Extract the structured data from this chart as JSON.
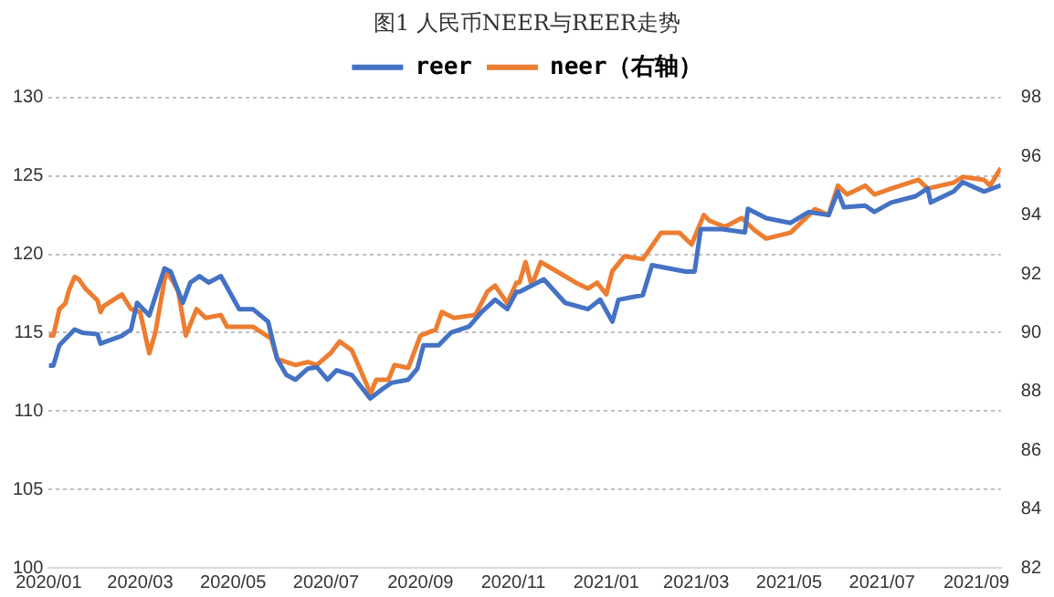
{
  "chart_data": {
    "type": "line",
    "title": "图1 人民币NEER与REER走势",
    "legend": "top",
    "grid": "y",
    "marker": "none",
    "line_style": "solid",
    "xlim": [
      "2020-01-01",
      "2021-09-17"
    ],
    "xticks": [
      {
        "value": "2020-01-01",
        "label": "2020/01"
      },
      {
        "value": "2020-03-01",
        "label": "2020/03"
      },
      {
        "value": "2020-05-01",
        "label": "2020/05"
      },
      {
        "value": "2020-07-01",
        "label": "2020/07"
      },
      {
        "value": "2020-09-01",
        "label": "2020/09"
      },
      {
        "value": "2020-11-01",
        "label": "2020/11"
      },
      {
        "value": "2021-01-01",
        "label": "2021/01"
      },
      {
        "value": "2021-03-01",
        "label": "2021/03"
      },
      {
        "value": "2021-05-01",
        "label": "2021/05"
      },
      {
        "value": "2021-07-01",
        "label": "2021/07"
      },
      {
        "value": "2021-09-01",
        "label": "2021/09"
      }
    ],
    "ylim": [
      100,
      130
    ],
    "yticks": [
      100,
      105,
      110,
      115,
      120,
      125,
      130
    ],
    "y2lim": [
      82,
      98
    ],
    "y2ticks": [
      82,
      84,
      86,
      88,
      90,
      92,
      94,
      96,
      98
    ],
    "series": [
      {
        "name": "reer",
        "color": "#4472c4",
        "x": [
          "2020-01-01",
          "2020-01-04",
          "2020-01-08",
          "2020-01-12",
          "2020-01-18",
          "2020-01-23",
          "2020-02-02",
          "2020-02-04",
          "2020-02-18",
          "2020-02-24",
          "2020-02-28",
          "2020-03-07",
          "2020-03-17",
          "2020-03-21",
          "2020-03-29",
          "2020-04-03",
          "2020-04-09",
          "2020-04-15",
          "2020-04-23",
          "2020-05-05",
          "2020-05-14",
          "2020-05-24",
          "2020-05-30",
          "2020-06-05",
          "2020-06-11",
          "2020-06-19",
          "2020-06-25",
          "2020-07-02",
          "2020-07-08",
          "2020-07-18",
          "2020-07-30",
          "2020-08-07",
          "2020-08-13",
          "2020-08-24",
          "2020-08-30",
          "2020-09-03",
          "2020-09-13",
          "2020-09-21",
          "2020-10-03",
          "2020-10-11",
          "2020-10-20",
          "2020-10-28",
          "2020-11-03",
          "2020-11-05",
          "2020-11-21",
          "2020-12-05",
          "2020-12-20",
          "2020-12-28",
          "2021-01-05",
          "2021-01-09",
          "2021-01-25",
          "2021-01-31",
          "2021-02-22",
          "2021-02-28",
          "2021-03-04",
          "2021-03-18",
          "2021-04-02",
          "2021-04-04",
          "2021-04-16",
          "2021-05-02",
          "2021-05-14",
          "2021-05-27",
          "2021-06-02",
          "2021-06-06",
          "2021-06-20",
          "2021-06-26",
          "2021-07-07",
          "2021-07-23",
          "2021-07-31",
          "2021-08-02",
          "2021-08-17",
          "2021-08-23",
          "2021-09-06",
          "2021-09-17"
        ],
        "values": [
          112.9,
          112.9,
          114.2,
          114.6,
          115.2,
          115.0,
          114.9,
          114.3,
          114.8,
          115.2,
          116.9,
          116.1,
          119.1,
          118.9,
          116.9,
          118.2,
          118.6,
          118.2,
          118.6,
          116.5,
          116.5,
          115.7,
          113.3,
          112.3,
          112.0,
          112.7,
          112.8,
          112.0,
          112.6,
          112.3,
          110.8,
          111.4,
          111.8,
          112.0,
          112.7,
          114.2,
          114.2,
          115.0,
          115.4,
          116.3,
          117.1,
          116.5,
          117.6,
          117.6,
          118.4,
          116.9,
          116.5,
          117.1,
          115.7,
          117.1,
          117.4,
          119.3,
          118.9,
          118.9,
          121.6,
          121.6,
          121.4,
          122.9,
          122.3,
          122.0,
          122.7,
          122.5,
          124.0,
          123.0,
          123.1,
          122.7,
          123.3,
          123.7,
          124.2,
          123.3,
          124.0,
          124.6,
          124.0,
          124.4
        ]
      },
      {
        "name": "neer（右轴）",
        "color": "#ed7d31",
        "axis": "y2",
        "x": [
          "2020-01-01",
          "2020-01-04",
          "2020-01-08",
          "2020-01-12",
          "2020-01-14",
          "2020-01-18",
          "2020-01-21",
          "2020-01-25",
          "2020-02-02",
          "2020-02-04",
          "2020-02-06",
          "2020-02-18",
          "2020-02-24",
          "2020-03-01",
          "2020-03-07",
          "2020-03-11",
          "2020-03-18",
          "2020-03-23",
          "2020-03-26",
          "2020-03-31",
          "2020-04-07",
          "2020-04-13",
          "2020-04-23",
          "2020-04-27",
          "2020-05-14",
          "2020-05-26",
          "2020-05-30",
          "2020-06-11",
          "2020-06-19",
          "2020-06-25",
          "2020-07-04",
          "2020-07-10",
          "2020-07-18",
          "2020-07-28",
          "2020-07-30",
          "2020-08-03",
          "2020-08-11",
          "2020-08-15",
          "2020-08-24",
          "2020-09-01",
          "2020-09-11",
          "2020-09-15",
          "2020-09-23",
          "2020-10-07",
          "2020-10-15",
          "2020-10-20",
          "2020-10-28",
          "2020-11-03",
          "2020-11-05",
          "2020-11-09",
          "2020-11-13",
          "2020-11-19",
          "2020-11-29",
          "2020-12-12",
          "2020-12-20",
          "2020-12-26",
          "2021-01-01",
          "2021-01-05",
          "2021-01-13",
          "2021-01-25",
          "2021-02-06",
          "2021-02-18",
          "2021-02-26",
          "2021-03-06",
          "2021-03-10",
          "2021-03-20",
          "2021-03-31",
          "2021-04-08",
          "2021-04-16",
          "2021-05-02",
          "2021-05-18",
          "2021-05-27",
          "2021-06-02",
          "2021-06-08",
          "2021-06-20",
          "2021-06-26",
          "2021-07-07",
          "2021-07-25",
          "2021-07-31",
          "2021-08-17",
          "2021-08-23",
          "2021-09-06",
          "2021-09-10",
          "2021-09-17"
        ],
        "values": [
          89.9,
          89.9,
          90.8,
          91.0,
          91.4,
          91.9,
          91.8,
          91.5,
          91.1,
          90.7,
          90.9,
          91.3,
          90.8,
          90.7,
          89.3,
          90.0,
          92.1,
          91.7,
          91.4,
          89.9,
          90.8,
          90.5,
          90.6,
          90.2,
          90.2,
          89.8,
          89.1,
          88.9,
          89.0,
          88.9,
          89.3,
          89.7,
          89.4,
          88.2,
          87.9,
          88.4,
          88.4,
          88.9,
          88.8,
          89.9,
          90.1,
          90.7,
          90.5,
          90.6,
          91.4,
          91.6,
          91.0,
          91.7,
          91.7,
          92.4,
          91.6,
          92.4,
          92.1,
          91.7,
          91.5,
          91.7,
          91.3,
          92.1,
          92.6,
          92.5,
          93.4,
          93.4,
          93.0,
          94.0,
          93.8,
          93.6,
          93.9,
          93.5,
          93.2,
          93.4,
          94.2,
          94.0,
          95.0,
          94.7,
          95.0,
          94.7,
          94.9,
          95.2,
          94.9,
          95.1,
          95.3,
          95.2,
          95.0,
          95.6
        ]
      }
    ]
  }
}
